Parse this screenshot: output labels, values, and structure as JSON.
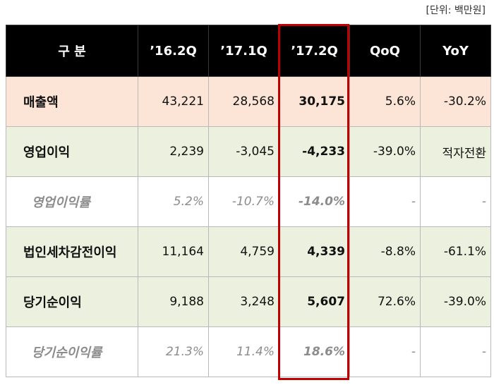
{
  "unit_note": "[단위: 백만원]",
  "columns": [
    "구 분",
    "’16.2Q",
    "’17.1Q",
    "’17.2Q",
    "QoQ",
    "YoY"
  ],
  "rows": [
    {
      "label": "매출액",
      "q16_2": "43,221",
      "q17_1": "28,568",
      "q17_2": "30,175",
      "qoq": "5.6%",
      "yoy": "-30.2%"
    },
    {
      "label": "영업이익",
      "q16_2": "2,239",
      "q17_1": "-3,045",
      "q17_2": "-4,233",
      "qoq": "-39.0%",
      "yoy": "적자전환"
    },
    {
      "label": "영업이익률",
      "q16_2": "5.2%",
      "q17_1": "-10.7%",
      "q17_2": "-14.0%",
      "qoq": "-",
      "yoy": "-"
    },
    {
      "label": "법인세차감전이익",
      "q16_2": "11,164",
      "q17_1": "4,759",
      "q17_2": "4,339",
      "qoq": "-8.8%",
      "yoy": "-61.1%"
    },
    {
      "label": "당기순이익",
      "q16_2": "9,188",
      "q17_1": "3,248",
      "q17_2": "5,607",
      "qoq": "72.6%",
      "yoy": "-39.0%"
    },
    {
      "label": "당기순이익률",
      "q16_2": "21.3%",
      "q17_1": "11.4%",
      "q17_2": "18.6%",
      "qoq": "-",
      "yoy": "-"
    }
  ],
  "colors": {
    "header_bg": "#000000",
    "revenue_row": "#fce4d6",
    "profit_row": "#ebf1de",
    "highlight_border": "#c00000"
  }
}
